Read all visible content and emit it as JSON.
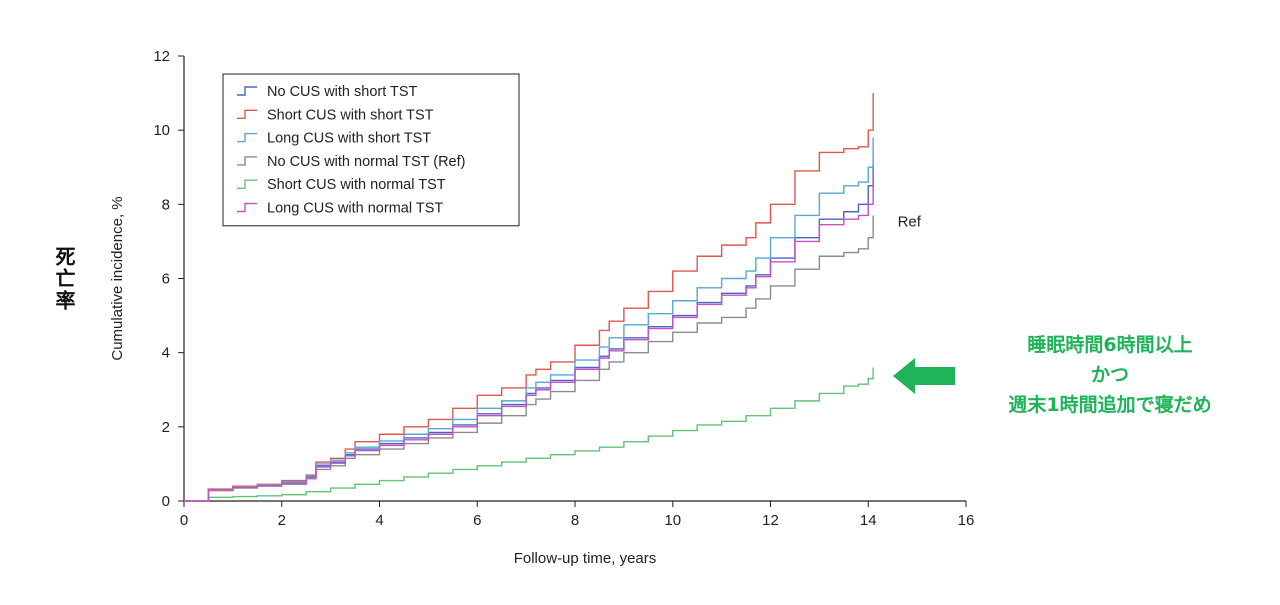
{
  "side_label": "死亡率",
  "annotation": {
    "line1": "睡眠時間6時間以上",
    "line2": "かつ",
    "line3": "週末1時間追加で寝だめ",
    "color": "#1fb35a"
  },
  "chart_data": {
    "type": "line",
    "step": true,
    "xlabel": "Follow-up time, years",
    "ylabel": "Cumulative incidence, %",
    "xlim": [
      0,
      16
    ],
    "ylim": [
      0,
      12
    ],
    "xticks": [
      0,
      2,
      4,
      6,
      8,
      10,
      12,
      14,
      16
    ],
    "yticks": [
      0,
      2,
      4,
      6,
      8,
      10,
      12
    ],
    "grid": false,
    "legend_position": "top-left",
    "annotations": [
      {
        "text": "Ref",
        "x": 14.6,
        "y": 7.4
      }
    ],
    "series": [
      {
        "name": "No CUS with short TST",
        "color": "#4a63c4",
        "x": [
          0,
          0.5,
          1,
          1.5,
          2,
          2.5,
          2.7,
          3,
          3.3,
          3.5,
          4,
          4.5,
          5,
          5.5,
          6,
          6.5,
          7,
          7.2,
          7.5,
          8,
          8.5,
          8.7,
          9,
          9.5,
          10,
          10.5,
          11,
          11.5,
          11.7,
          12,
          12.5,
          13,
          13.5,
          13.8,
          14,
          14.1
        ],
        "y": [
          0,
          0.3,
          0.38,
          0.42,
          0.5,
          0.65,
          0.95,
          1.05,
          1.25,
          1.4,
          1.55,
          1.7,
          1.85,
          2.05,
          2.35,
          2.6,
          2.9,
          3.05,
          3.25,
          3.6,
          3.9,
          4.1,
          4.4,
          4.7,
          5.0,
          5.35,
          5.6,
          5.8,
          6.1,
          6.55,
          7.1,
          7.6,
          7.8,
          8.0,
          8.5,
          9.1
        ]
      },
      {
        "name": "Short CUS with short TST",
        "color": "#e0574f",
        "x": [
          0,
          0.5,
          1,
          1.5,
          2,
          2.5,
          2.7,
          3,
          3.3,
          3.5,
          4,
          4.5,
          5,
          5.5,
          6,
          6.5,
          7,
          7.2,
          7.5,
          8,
          8.5,
          8.7,
          9,
          9.5,
          10,
          10.5,
          11,
          11.5,
          11.7,
          12,
          12.5,
          13,
          13.5,
          13.8,
          14,
          14.1
        ],
        "y": [
          0,
          0.32,
          0.4,
          0.45,
          0.55,
          0.7,
          1.05,
          1.15,
          1.4,
          1.6,
          1.8,
          2.0,
          2.2,
          2.5,
          2.85,
          3.05,
          3.4,
          3.55,
          3.75,
          4.2,
          4.6,
          4.85,
          5.2,
          5.65,
          6.2,
          6.6,
          6.9,
          7.1,
          7.5,
          8.0,
          8.9,
          9.4,
          9.5,
          9.55,
          10.0,
          11.0
        ]
      },
      {
        "name": "Long CUS with short TST",
        "color": "#56a8d6",
        "x": [
          0,
          0.5,
          1,
          1.5,
          2,
          2.5,
          2.7,
          3,
          3.3,
          3.5,
          4,
          4.5,
          5,
          5.5,
          6,
          6.5,
          7,
          7.2,
          7.5,
          8,
          8.5,
          8.7,
          9,
          9.5,
          10,
          10.5,
          11,
          11.5,
          11.7,
          12,
          12.5,
          13,
          13.5,
          13.8,
          14,
          14.1
        ],
        "y": [
          0,
          0.3,
          0.38,
          0.43,
          0.52,
          0.68,
          1.0,
          1.1,
          1.3,
          1.45,
          1.62,
          1.8,
          1.95,
          2.2,
          2.5,
          2.7,
          3.05,
          3.2,
          3.4,
          3.8,
          4.15,
          4.4,
          4.75,
          5.05,
          5.4,
          5.75,
          6.0,
          6.2,
          6.55,
          7.1,
          7.7,
          8.3,
          8.5,
          8.6,
          9.0,
          9.8
        ]
      },
      {
        "name": "No CUS with normal TST (Ref)",
        "color": "#8c8c8c",
        "x": [
          0,
          0.5,
          1,
          1.5,
          2,
          2.5,
          2.7,
          3,
          3.3,
          3.5,
          4,
          4.5,
          5,
          5.5,
          6,
          6.5,
          7,
          7.2,
          7.5,
          8,
          8.5,
          8.7,
          9,
          9.5,
          10,
          10.5,
          11,
          11.5,
          11.7,
          12,
          12.5,
          13,
          13.5,
          13.8,
          14,
          14.1
        ],
        "y": [
          0,
          0.28,
          0.35,
          0.4,
          0.45,
          0.6,
          0.85,
          0.95,
          1.15,
          1.25,
          1.4,
          1.55,
          1.7,
          1.85,
          2.1,
          2.3,
          2.6,
          2.75,
          2.95,
          3.25,
          3.55,
          3.75,
          4.0,
          4.3,
          4.55,
          4.8,
          4.95,
          5.2,
          5.45,
          5.8,
          6.25,
          6.6,
          6.7,
          6.8,
          7.1,
          7.7
        ]
      },
      {
        "name": "Short CUS with normal TST",
        "color": "#63c27a",
        "x": [
          0,
          0.5,
          1,
          1.5,
          2,
          2.5,
          3,
          3.5,
          4,
          4.5,
          5,
          5.5,
          6,
          6.5,
          7,
          7.5,
          8,
          8.5,
          9,
          9.5,
          10,
          10.5,
          11,
          11.5,
          12,
          12.5,
          13,
          13.5,
          13.8,
          14,
          14.1
        ],
        "y": [
          0,
          0.1,
          0.12,
          0.14,
          0.17,
          0.25,
          0.35,
          0.45,
          0.55,
          0.65,
          0.75,
          0.85,
          0.95,
          1.05,
          1.15,
          1.25,
          1.35,
          1.45,
          1.6,
          1.75,
          1.9,
          2.05,
          2.15,
          2.3,
          2.5,
          2.7,
          2.9,
          3.1,
          3.15,
          3.3,
          3.6
        ]
      },
      {
        "name": "Long CUS with normal TST",
        "color": "#c452c4",
        "x": [
          0,
          0.5,
          1,
          1.5,
          2,
          2.5,
          2.7,
          3,
          3.3,
          3.5,
          4,
          4.5,
          5,
          5.5,
          6,
          6.5,
          7,
          7.2,
          7.5,
          8,
          8.5,
          8.7,
          9,
          9.5,
          10,
          10.5,
          11,
          11.5,
          11.7,
          12,
          12.5,
          13,
          13.5,
          13.8,
          14,
          14.1
        ],
        "y": [
          0,
          0.3,
          0.37,
          0.41,
          0.48,
          0.63,
          0.92,
          1.02,
          1.22,
          1.36,
          1.5,
          1.65,
          1.8,
          2.0,
          2.3,
          2.55,
          2.85,
          3.0,
          3.2,
          3.55,
          3.85,
          4.05,
          4.35,
          4.65,
          4.95,
          5.3,
          5.55,
          5.75,
          6.05,
          6.45,
          7.0,
          7.45,
          7.6,
          7.7,
          8.0,
          8.9
        ]
      }
    ]
  }
}
